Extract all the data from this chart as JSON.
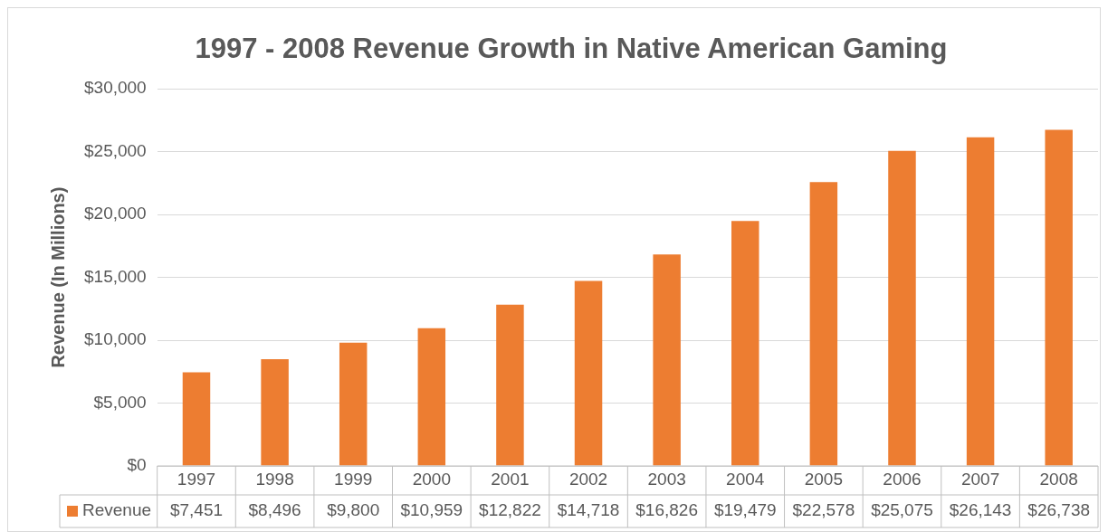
{
  "chart_data": {
    "type": "bar",
    "title": "1997 - 2008 Revenue Growth in Native American Gaming",
    "ylabel": "Revenue (In Millions)",
    "categories": [
      "1997",
      "1998",
      "1999",
      "2000",
      "2001",
      "2002",
      "2003",
      "2004",
      "2005",
      "2006",
      "2007",
      "2008"
    ],
    "series": [
      {
        "name": "Revenue",
        "color": "#ed7d31",
        "values": [
          7451,
          8496,
          9800,
          10959,
          12822,
          14718,
          16826,
          19479,
          22578,
          25075,
          26143,
          26738
        ],
        "value_labels": [
          "$7,451",
          "$8,496",
          "$9,800",
          "$10,959",
          "$12,822",
          "$14,718",
          "$16,826",
          "$19,479",
          "$22,578",
          "$25,075",
          "$26,143",
          "$26,738"
        ]
      }
    ],
    "ylim": [
      0,
      30000
    ],
    "yticks": [
      {
        "value": 0,
        "label": "$0"
      },
      {
        "value": 5000,
        "label": "$5,000"
      },
      {
        "value": 10000,
        "label": "$10,000"
      },
      {
        "value": 15000,
        "label": "$15,000"
      },
      {
        "value": 20000,
        "label": "$20,000"
      },
      {
        "value": 25000,
        "label": "$25,000"
      },
      {
        "value": 30000,
        "label": "$30,000"
      }
    ],
    "grid": "y"
  }
}
